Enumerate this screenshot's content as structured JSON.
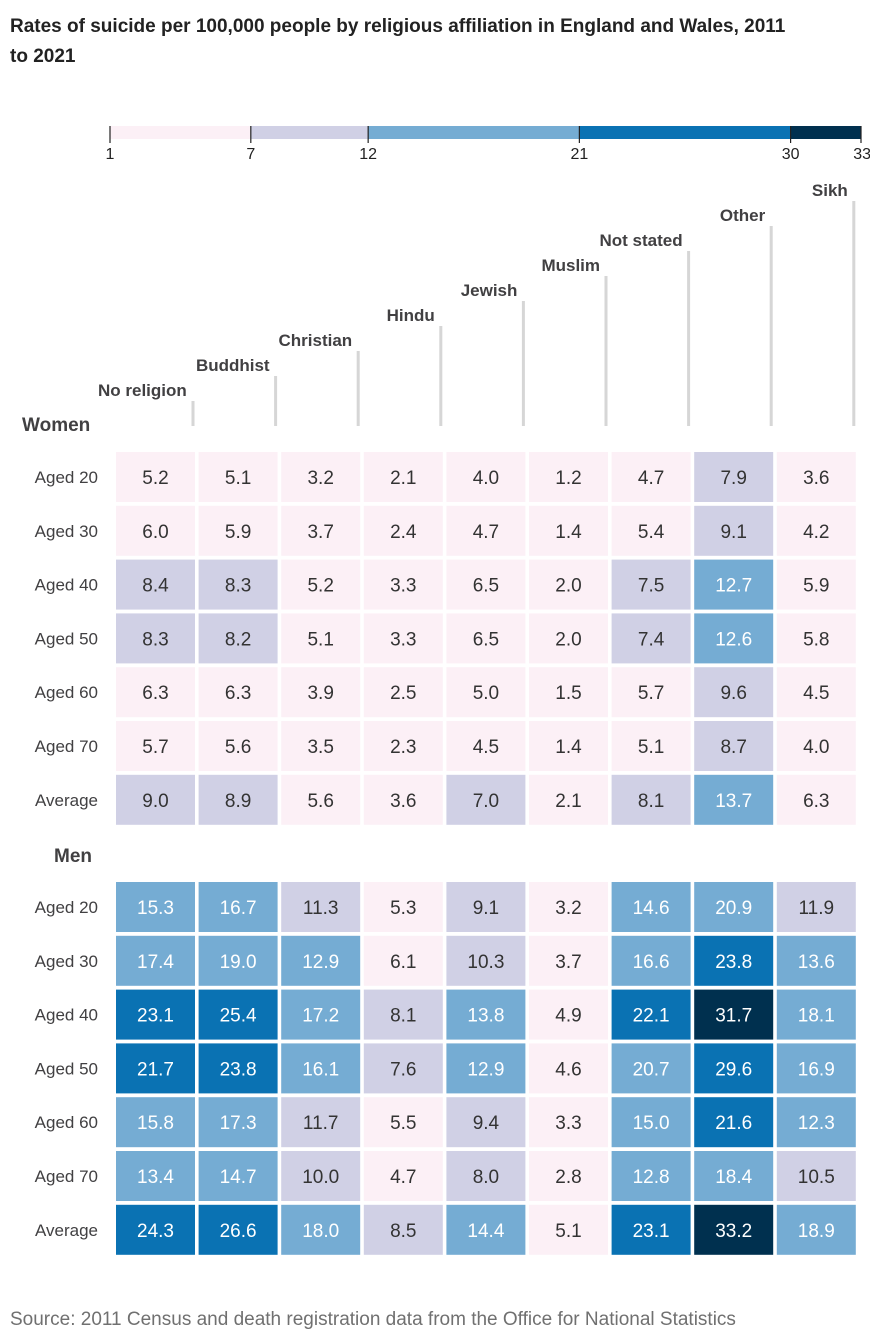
{
  "chart_data": {
    "type": "heatmap",
    "title": "Rates of suicide per 100,000 people by religious affiliation in England and Wales, 2011 to 2021",
    "columns": [
      "No religion",
      "Buddhist",
      "Christian",
      "Hindu",
      "Jewish",
      "Muslim",
      "Not stated",
      "Other",
      "Sikh"
    ],
    "legend": {
      "breaks": [
        1,
        7,
        12,
        21,
        30,
        33
      ],
      "colors": [
        "#fcf0f6",
        "#d0d0e5",
        "#75acd3",
        "#0a72b3",
        "#00304f"
      ]
    },
    "groups": [
      {
        "name": "Women",
        "rows": [
          {
            "label": "Aged 20",
            "values": [
              5.2,
              5.1,
              3.2,
              2.1,
              4.0,
              1.2,
              4.7,
              7.9,
              3.6
            ]
          },
          {
            "label": "Aged 30",
            "values": [
              6.0,
              5.9,
              3.7,
              2.4,
              4.7,
              1.4,
              5.4,
              9.1,
              4.2
            ]
          },
          {
            "label": "Aged 40",
            "values": [
              8.4,
              8.3,
              5.2,
              3.3,
              6.5,
              2.0,
              7.5,
              12.7,
              5.9
            ]
          },
          {
            "label": "Aged 50",
            "values": [
              8.3,
              8.2,
              5.1,
              3.3,
              6.5,
              2.0,
              7.4,
              12.6,
              5.8
            ]
          },
          {
            "label": "Aged 60",
            "values": [
              6.3,
              6.3,
              3.9,
              2.5,
              5.0,
              1.5,
              5.7,
              9.6,
              4.5
            ]
          },
          {
            "label": "Aged 70",
            "values": [
              5.7,
              5.6,
              3.5,
              2.3,
              4.5,
              1.4,
              5.1,
              8.7,
              4.0
            ]
          },
          {
            "label": "Average",
            "values": [
              9.0,
              8.9,
              5.6,
              3.6,
              7.0,
              2.1,
              8.1,
              13.7,
              6.3
            ]
          }
        ]
      },
      {
        "name": "Men",
        "rows": [
          {
            "label": "Aged 20",
            "values": [
              15.3,
              16.7,
              11.3,
              5.3,
              9.1,
              3.2,
              14.6,
              20.9,
              11.9
            ]
          },
          {
            "label": "Aged 30",
            "values": [
              17.4,
              19.0,
              12.9,
              6.1,
              10.3,
              3.7,
              16.6,
              23.8,
              13.6
            ]
          },
          {
            "label": "Aged 40",
            "values": [
              23.1,
              25.4,
              17.2,
              8.1,
              13.8,
              4.9,
              22.1,
              31.7,
              18.1
            ]
          },
          {
            "label": "Aged 50",
            "values": [
              21.7,
              23.8,
              16.1,
              7.6,
              12.9,
              4.6,
              20.7,
              29.6,
              16.9
            ]
          },
          {
            "label": "Aged 60",
            "values": [
              15.8,
              17.3,
              11.7,
              5.5,
              9.4,
              3.3,
              15.0,
              21.6,
              12.3
            ]
          },
          {
            "label": "Aged 70",
            "values": [
              13.4,
              14.7,
              10.0,
              4.7,
              8.0,
              2.8,
              12.8,
              18.4,
              10.5
            ]
          },
          {
            "label": "Average",
            "values": [
              24.3,
              26.6,
              18.0,
              8.5,
              14.4,
              5.1,
              23.1,
              33.2,
              18.9
            ]
          }
        ]
      }
    ],
    "source": "Source: 2011 Census and death registration data from the Office for National Statistics"
  }
}
